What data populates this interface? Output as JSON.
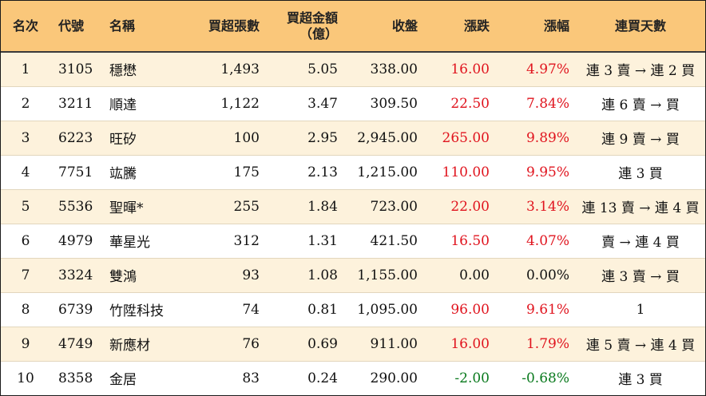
{
  "headers": {
    "rank": "名次",
    "code": "代號",
    "name": "名稱",
    "lots": "買超張數",
    "amount_line1": "買超金額",
    "amount_line2": "（億）",
    "close": "收盤",
    "change": "漲跌",
    "pct": "漲幅",
    "days": "連買天數"
  },
  "colors": {
    "header_bg": "#fac77a",
    "row_alt_bg": "#fdf2dc",
    "up": "#e0141e",
    "down": "#0a7a1e"
  },
  "rows": [
    {
      "rank": "1",
      "code": "3105",
      "name": "穩懋",
      "lots": "1,493",
      "amount": "5.05",
      "close": "338.00",
      "change": "16.00",
      "pct": "4.97%",
      "days": "連 3 賣 → 連 2 買",
      "trend": "up"
    },
    {
      "rank": "2",
      "code": "3211",
      "name": "順達",
      "lots": "1,122",
      "amount": "3.47",
      "close": "309.50",
      "change": "22.50",
      "pct": "7.84%",
      "days": "連 6 賣 → 買",
      "trend": "up"
    },
    {
      "rank": "3",
      "code": "6223",
      "name": "旺矽",
      "lots": "100",
      "amount": "2.95",
      "close": "2,945.00",
      "change": "265.00",
      "pct": "9.89%",
      "days": "連 9 賣 → 買",
      "trend": "up"
    },
    {
      "rank": "4",
      "code": "7751",
      "name": "竑騰",
      "lots": "175",
      "amount": "2.13",
      "close": "1,215.00",
      "change": "110.00",
      "pct": "9.95%",
      "days": "連 3 買",
      "trend": "up"
    },
    {
      "rank": "5",
      "code": "5536",
      "name": "聖暉*",
      "lots": "255",
      "amount": "1.84",
      "close": "723.00",
      "change": "22.00",
      "pct": "3.14%",
      "days": "連 13 賣 → 連 4 買",
      "trend": "up"
    },
    {
      "rank": "6",
      "code": "4979",
      "name": "華星光",
      "lots": "312",
      "amount": "1.31",
      "close": "421.50",
      "change": "16.50",
      "pct": "4.07%",
      "days": "賣 → 連 4 買",
      "trend": "up"
    },
    {
      "rank": "7",
      "code": "3324",
      "name": "雙鴻",
      "lots": "93",
      "amount": "1.08",
      "close": "1,155.00",
      "change": "0.00",
      "pct": "0.00%",
      "days": "連 3 賣 → 買",
      "trend": "flat"
    },
    {
      "rank": "8",
      "code": "6739",
      "name": "竹陞科技",
      "lots": "74",
      "amount": "0.81",
      "close": "1,095.00",
      "change": "96.00",
      "pct": "9.61%",
      "days": "1",
      "trend": "up"
    },
    {
      "rank": "9",
      "code": "4749",
      "name": "新應材",
      "lots": "76",
      "amount": "0.69",
      "close": "911.00",
      "change": "16.00",
      "pct": "1.79%",
      "days": "連 5 賣 → 連 4 買",
      "trend": "up"
    },
    {
      "rank": "10",
      "code": "8358",
      "name": "金居",
      "lots": "83",
      "amount": "0.24",
      "close": "290.00",
      "change": "-2.00",
      "pct": "-0.68%",
      "days": "連 3 買",
      "trend": "down"
    }
  ]
}
